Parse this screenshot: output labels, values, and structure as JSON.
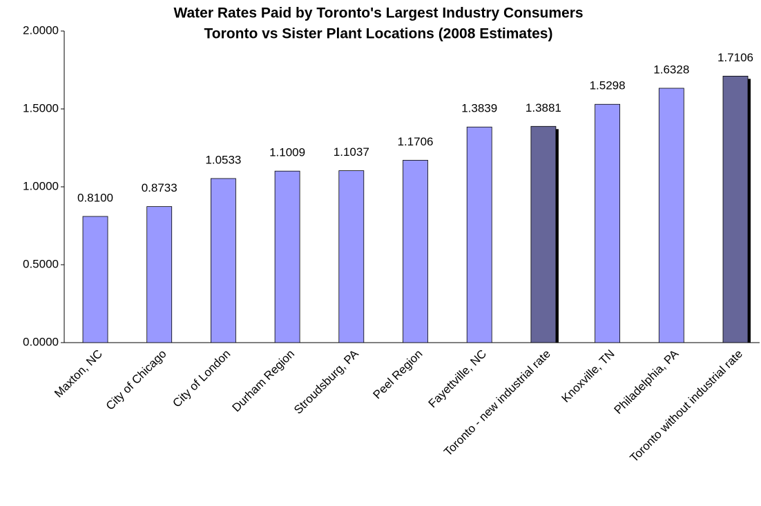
{
  "chart_data": {
    "type": "bar",
    "title": [
      "Water Rates Paid by Toronto's Largest Industry Consumers",
      "Toronto vs Sister Plant Locations  (2008 Estimates)"
    ],
    "categories": [
      "Maxton, NC",
      "City of Chicago",
      "City of London",
      "Durham Region",
      "Stroudsburg, PA",
      "Peel Region",
      "Fayettville, NC",
      "Toronto - new industrial rate",
      "Knoxville, TN",
      "Philadelphia, PA",
      "Toronto without industrial rate"
    ],
    "values": [
      0.81,
      0.8733,
      1.0533,
      1.1009,
      1.1037,
      1.1706,
      1.3839,
      1.3881,
      1.5298,
      1.6328,
      1.7106
    ],
    "value_labels": [
      "0.8100",
      "0.8733",
      "1.0533",
      "1.1009",
      "1.1037",
      "1.1706",
      "1.3839",
      "1.3881",
      "1.5298",
      "1.6328",
      "1.7106"
    ],
    "colors": [
      "#9999ff",
      "#9999ff",
      "#9999ff",
      "#9999ff",
      "#9999ff",
      "#9999ff",
      "#9999ff",
      "#666699",
      "#9999ff",
      "#9999ff",
      "#666699"
    ],
    "ylim": [
      0,
      2
    ],
    "yticks": [
      {
        "value": 0,
        "label": "0.0000"
      },
      {
        "value": 0.5,
        "label": "0.5000"
      },
      {
        "value": 1,
        "label": "1.0000"
      },
      {
        "value": 1.5,
        "label": "1.5000"
      },
      {
        "value": 2,
        "label": "2.0000"
      }
    ],
    "grid": false
  }
}
